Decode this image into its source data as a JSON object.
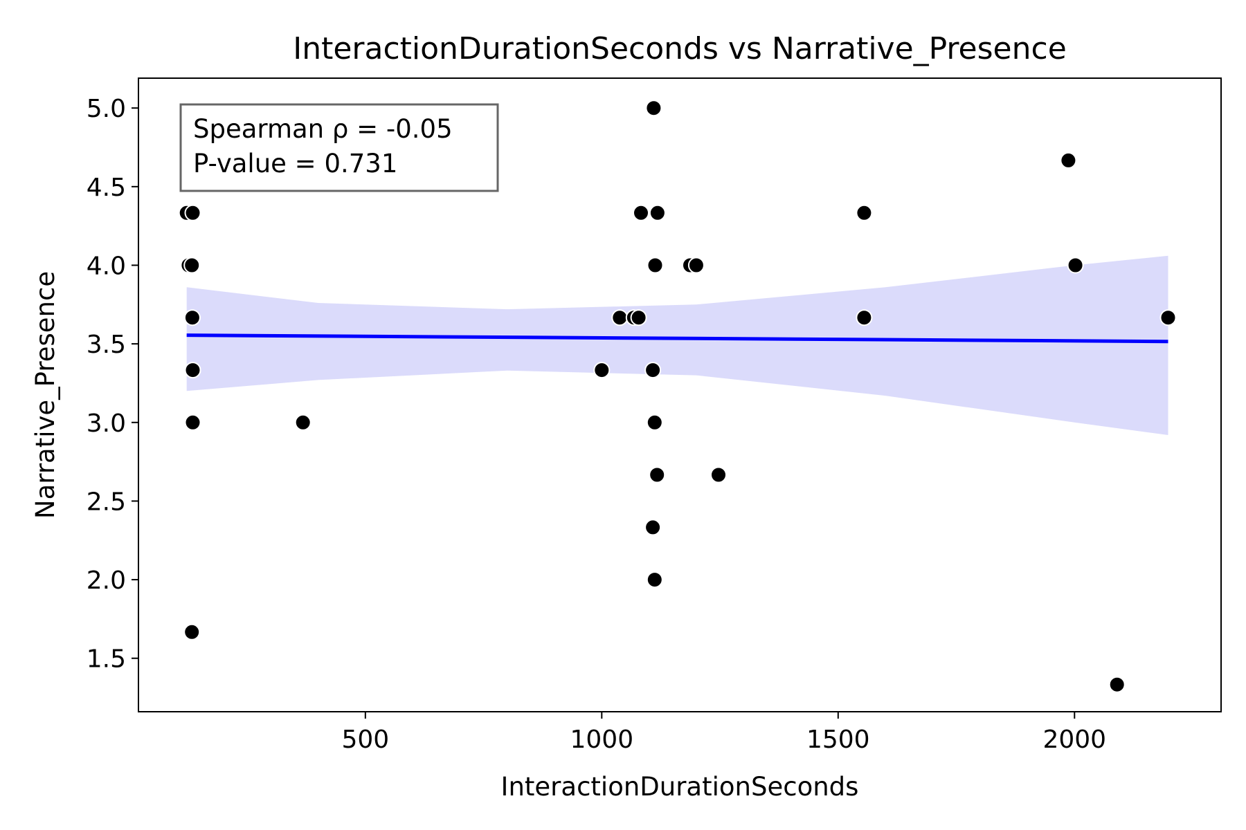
{
  "chart_data": {
    "type": "scatter",
    "title": "InteractionDurationSeconds vs Narrative_Presence",
    "xlabel": "InteractionDurationSeconds",
    "ylabel": "Narrative_Presence",
    "xlim": [
      20,
      2310
    ],
    "ylim": [
      1.16,
      5.19
    ],
    "xticks": [
      500,
      1000,
      1500,
      2000
    ],
    "xtick_labels": [
      "500",
      "1000",
      "1500",
      "2000"
    ],
    "yticks": [
      1.5,
      2.0,
      2.5,
      3.0,
      3.5,
      4.0,
      4.5,
      5.0
    ],
    "ytick_labels": [
      "1.5",
      "2.0",
      "2.5",
      "3.0",
      "3.5",
      "4.0",
      "4.5",
      "5.0"
    ],
    "grid": false,
    "annotation": {
      "lines": [
        "Spearman ρ = -0.05",
        "P-value = 0.731"
      ],
      "placement": "top-left"
    },
    "points": [
      {
        "x": 122,
        "y": 4.333
      },
      {
        "x": 135,
        "y": 4.333
      },
      {
        "x": 126,
        "y": 4.0
      },
      {
        "x": 133,
        "y": 4.0
      },
      {
        "x": 134,
        "y": 3.667
      },
      {
        "x": 135,
        "y": 3.333
      },
      {
        "x": 135,
        "y": 3.0
      },
      {
        "x": 133,
        "y": 1.667
      },
      {
        "x": 368,
        "y": 3.0
      },
      {
        "x": 1000,
        "y": 3.333
      },
      {
        "x": 1038,
        "y": 3.667
      },
      {
        "x": 1068,
        "y": 3.667
      },
      {
        "x": 1078,
        "y": 3.667
      },
      {
        "x": 1083,
        "y": 4.333
      },
      {
        "x": 1110,
        "y": 5.0
      },
      {
        "x": 1118,
        "y": 4.333
      },
      {
        "x": 1113,
        "y": 4.0
      },
      {
        "x": 1108,
        "y": 3.333
      },
      {
        "x": 1112,
        "y": 3.0
      },
      {
        "x": 1117,
        "y": 2.667
      },
      {
        "x": 1108,
        "y": 2.333
      },
      {
        "x": 1112,
        "y": 2.0
      },
      {
        "x": 1187,
        "y": 4.0
      },
      {
        "x": 1200,
        "y": 4.0
      },
      {
        "x": 1247,
        "y": 2.667
      },
      {
        "x": 1555,
        "y": 4.333
      },
      {
        "x": 1555,
        "y": 3.667
      },
      {
        "x": 1987,
        "y": 4.667
      },
      {
        "x": 2002,
        "y": 4.0
      },
      {
        "x": 2090,
        "y": 1.333
      },
      {
        "x": 2198,
        "y": 3.667
      }
    ],
    "regression": {
      "x_range": [
        122,
        2198
      ],
      "y_start": 3.555,
      "y_end": 3.515,
      "ci_x": [
        122,
        400,
        800,
        1200,
        1600,
        2000,
        2198
      ],
      "ci_upper": [
        3.86,
        3.76,
        3.72,
        3.75,
        3.86,
        4.0,
        4.06
      ],
      "ci_lower": [
        3.2,
        3.27,
        3.33,
        3.3,
        3.17,
        3.0,
        2.92
      ]
    },
    "colors": {
      "points": "#000000",
      "point_edge": "#ffffff",
      "line": "#0000ff",
      "band": "#d9d9fb",
      "annotation_border": "#666666"
    }
  }
}
